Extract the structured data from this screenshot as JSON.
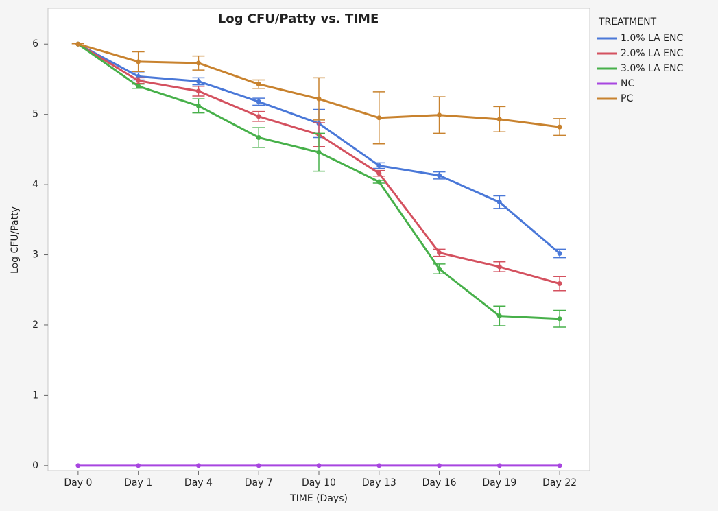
{
  "chart_data": {
    "type": "line",
    "title": "Log CFU/Patty vs. TIME",
    "x_label": "TIME (Days)",
    "y_label": "Log CFU/Patty",
    "legend_title": "TREATMENT",
    "categories": [
      "Day 0",
      "Day 1",
      "Day 4",
      "Day 7",
      "Day 10",
      "Day 13",
      "Day 16",
      "Day 19",
      "Day 22"
    ],
    "ylim": [
      -0.07,
      6.51
    ],
    "yticks": [
      0,
      1,
      2,
      3,
      4,
      5,
      6
    ],
    "grid": false,
    "legend": "right",
    "series": [
      {
        "name": "1.0% LA ENC",
        "color": "#4a78d8",
        "values": [
          6.0,
          5.54,
          5.47,
          5.18,
          4.87,
          4.27,
          4.13,
          3.75,
          3.02
        ],
        "errors": [
          0.01,
          0.05,
          0.05,
          0.05,
          0.2,
          0.04,
          0.05,
          0.09,
          0.06
        ]
      },
      {
        "name": "2.0% LA ENC",
        "color": "#d4515f",
        "values": [
          6.0,
          5.48,
          5.33,
          4.97,
          4.71,
          4.16,
          3.03,
          2.83,
          2.59
        ],
        "errors": [
          0.01,
          0.04,
          0.07,
          0.07,
          0.17,
          0.04,
          0.05,
          0.07,
          0.1
        ]
      },
      {
        "name": "3.0% LA ENC",
        "color": "#47b04a",
        "values": [
          6.0,
          5.4,
          5.12,
          4.67,
          4.46,
          4.04,
          2.8,
          2.13,
          2.09
        ],
        "errors": [
          0.01,
          0.03,
          0.1,
          0.14,
          0.27,
          0.02,
          0.07,
          0.14,
          0.12
        ]
      },
      {
        "name": "NC",
        "color": "#a846e0",
        "values": [
          0,
          0,
          0,
          0,
          0,
          0,
          0,
          0,
          0
        ],
        "errors": [
          0,
          0,
          0,
          0,
          0,
          0,
          0,
          0,
          0
        ]
      },
      {
        "name": "PC",
        "color": "#c8822e",
        "values": [
          6.0,
          5.75,
          5.73,
          5.43,
          5.22,
          4.95,
          4.99,
          4.93,
          4.82
        ],
        "errors": [
          0.01,
          0.14,
          0.1,
          0.06,
          0.3,
          0.37,
          0.26,
          0.18,
          0.12
        ]
      }
    ]
  }
}
